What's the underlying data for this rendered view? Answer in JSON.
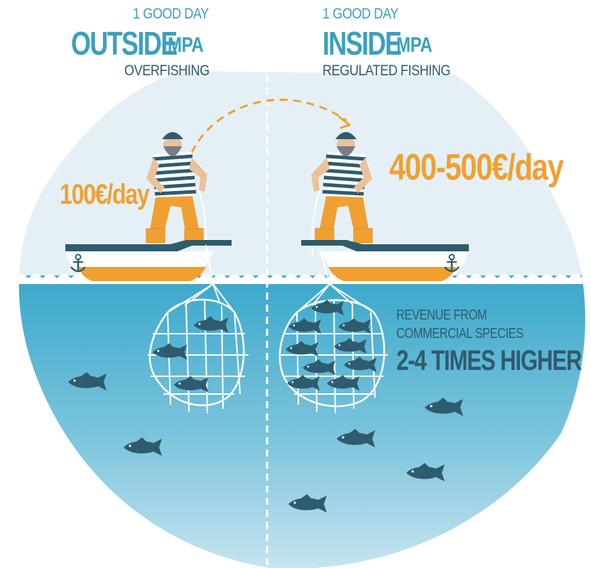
{
  "left": {
    "top_line": "1 GOOD DAY",
    "headline": "OUTSIDE",
    "headline_suffix": "MPA",
    "subline": "OVERFISHING",
    "income": "100€/day"
  },
  "right": {
    "top_line": "1 GOOD DAY",
    "headline": "INSIDE",
    "headline_suffix": "MPA",
    "subline": "REGULATED FISHING",
    "income": "400-500€/day"
  },
  "revenue": {
    "line1": "REVENUE FROM",
    "line2": "COMMERCIAL SPECIES",
    "highlight": "2-4 TIMES HIGHER"
  },
  "colors": {
    "sky": "#e4f0f6",
    "sea_top": "#3aa8cb",
    "sea_bottom": "#c5e4ef",
    "accent_blue": "#3aa0c0",
    "dark_blue": "#2f5b6e",
    "orange": "#f0a030"
  },
  "icons": [
    "fisherman-icon",
    "boat-icon",
    "anchor-icon",
    "fishing-net-icon",
    "fish-icon",
    "arrow-icon"
  ]
}
